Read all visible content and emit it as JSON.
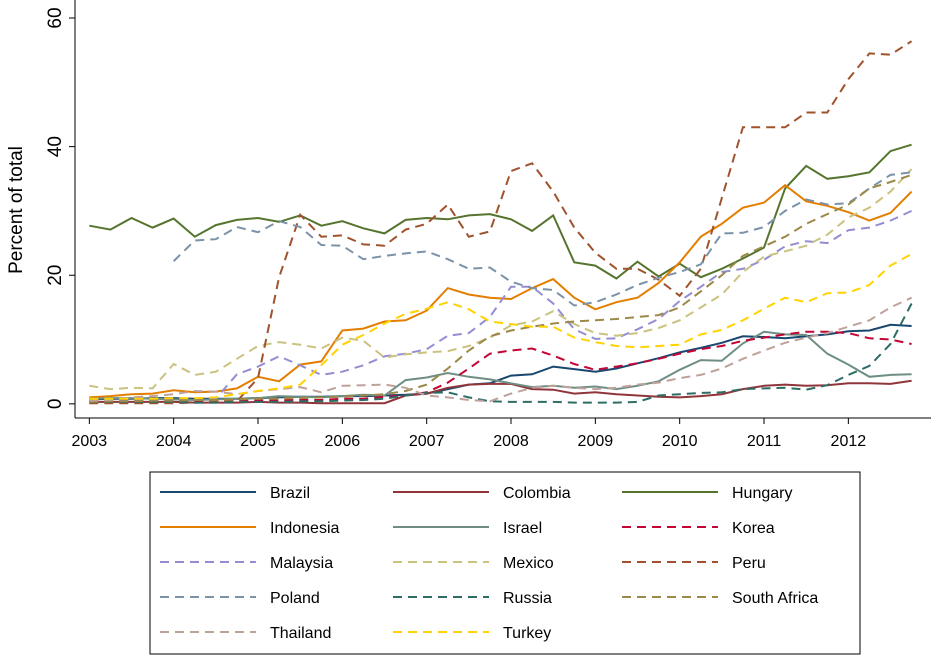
{
  "chart_data": {
    "type": "line",
    "y_label": "Percent of total",
    "x": [
      2003,
      2003.25,
      2003.5,
      2003.75,
      2004,
      2004.25,
      2004.5,
      2004.75,
      2005,
      2005.25,
      2005.5,
      2005.75,
      2006,
      2006.25,
      2006.5,
      2006.75,
      2007,
      2007.25,
      2007.5,
      2007.75,
      2008,
      2008.25,
      2008.5,
      2008.75,
      2009,
      2009.25,
      2009.5,
      2009.75,
      2010,
      2010.25,
      2010.5,
      2010.75,
      2011,
      2011.25,
      2011.5,
      2011.75,
      2012,
      2012.25,
      2012.5,
      2012.75
    ],
    "xlim": [
      2002.83,
      2012.98
    ],
    "xticks": [
      2003,
      2004,
      2005,
      2006,
      2007,
      2008,
      2009,
      2010,
      2011,
      2012
    ],
    "ylim": [
      -2.2,
      62.8
    ],
    "yticks": [
      0,
      20,
      40,
      60
    ],
    "grid": false,
    "series": [
      {
        "name": "Brazil",
        "color": "#1a476f",
        "style": "solid",
        "values": [
          0.7,
          0.8,
          0.8,
          0.9,
          0.9,
          0.8,
          0.8,
          0.8,
          0.9,
          1.0,
          1.1,
          1.1,
          1.2,
          1.2,
          1.3,
          1.4,
          1.6,
          2.3,
          3.0,
          3.2,
          4.4,
          4.6,
          5.8,
          5.4,
          5.0,
          5.5,
          6.3,
          7.1,
          8.0,
          8.7,
          9.5,
          10.5,
          10.4,
          10.2,
          10.5,
          10.8,
          11.3,
          11.4,
          12.3,
          12.1
        ]
      },
      {
        "name": "Colombia",
        "color": "#90353b",
        "style": "solid",
        "values": [
          0.3,
          0.3,
          0.3,
          0.3,
          0.3,
          0.2,
          0.2,
          0.2,
          0.3,
          0.2,
          0.2,
          0.1,
          0.1,
          0.1,
          0.1,
          1.3,
          1.6,
          2.5,
          3.0,
          3.1,
          3.1,
          2.3,
          2.2,
          1.6,
          1.8,
          1.5,
          1.3,
          1.1,
          1.0,
          1.2,
          1.5,
          2.3,
          2.8,
          3.0,
          2.8,
          2.9,
          3.2,
          3.2,
          3.1,
          3.6
        ]
      },
      {
        "name": "Hungary",
        "color": "#55752f",
        "style": "solid",
        "values": [
          27.7,
          27.1,
          28.9,
          27.4,
          28.8,
          26.0,
          27.8,
          28.6,
          28.9,
          28.3,
          29.3,
          27.7,
          28.4,
          27.3,
          26.5,
          28.6,
          28.9,
          28.7,
          29.3,
          29.5,
          28.7,
          26.9,
          29.3,
          22.0,
          21.5,
          19.5,
          22.1,
          19.8,
          21.8,
          19.7,
          21.0,
          22.6,
          24.3,
          33.5,
          37.0,
          35.0,
          35.4,
          36.0,
          39.3,
          40.3
        ]
      },
      {
        "name": "Indonesia",
        "color": "#e37e00",
        "style": "solid",
        "values": [
          1.0,
          1.2,
          1.5,
          1.6,
          2.1,
          1.8,
          1.9,
          2.4,
          4.2,
          3.5,
          6.1,
          6.6,
          11.4,
          11.7,
          12.8,
          13.0,
          14.5,
          18.0,
          17.0,
          16.5,
          16.3,
          18.0,
          19.4,
          16.5,
          14.7,
          15.8,
          16.5,
          18.8,
          22.0,
          26.0,
          28.0,
          30.5,
          31.3,
          34.0,
          31.5,
          30.8,
          29.8,
          28.5,
          29.7,
          33.0
        ]
      },
      {
        "name": "Israel",
        "color": "#6e8e84",
        "style": "solid",
        "values": [
          0.8,
          0.9,
          0.9,
          0.8,
          0.7,
          0.6,
          0.7,
          0.8,
          0.9,
          1.2,
          1.1,
          1.0,
          1.2,
          1.4,
          1.3,
          3.7,
          4.1,
          4.8,
          4.2,
          3.8,
          3.2,
          2.6,
          2.8,
          2.5,
          2.7,
          2.3,
          2.8,
          3.5,
          5.3,
          6.8,
          6.7,
          9.4,
          11.2,
          10.8,
          10.7,
          7.8,
          6.1,
          4.2,
          4.5,
          4.6
        ]
      },
      {
        "name": "Korea",
        "color": "#c10534",
        "style": "dashed",
        "values": [
          0.5,
          0.5,
          0.5,
          0.5,
          0.6,
          0.5,
          0.5,
          0.5,
          0.5,
          0.6,
          0.6,
          0.6,
          0.8,
          0.8,
          1.1,
          1.3,
          1.8,
          3.3,
          5.5,
          7.8,
          8.3,
          8.6,
          7.5,
          6.2,
          5.3,
          5.8,
          6.3,
          7.0,
          7.8,
          8.5,
          9.0,
          9.8,
          10.3,
          10.8,
          11.2,
          11.2,
          11.0,
          10.2,
          10.0,
          9.3
        ]
      },
      {
        "name": "Malaysia",
        "color": "#938dd2",
        "style": "dashed",
        "values": [
          0.3,
          0.4,
          0.5,
          0.5,
          0.6,
          0.7,
          0.8,
          4.6,
          5.8,
          7.4,
          6.0,
          4.5,
          5.0,
          6.0,
          7.4,
          7.8,
          8.5,
          10.6,
          11.0,
          13.5,
          18.2,
          18.2,
          15.6,
          11.6,
          10.1,
          10.2,
          11.6,
          13.2,
          16.0,
          18.2,
          20.5,
          21.0,
          22.4,
          24.5,
          25.3,
          25.0,
          27.0,
          27.4,
          28.5,
          30.0
        ]
      },
      {
        "name": "Mexico",
        "color": "#cac27e",
        "style": "dashed",
        "values": [
          2.8,
          2.3,
          2.5,
          2.4,
          6.2,
          4.5,
          5.0,
          7.0,
          9.0,
          9.6,
          9.2,
          8.6,
          10.3,
          9.8,
          7.2,
          7.7,
          8.0,
          8.2,
          9.0,
          10.3,
          12.2,
          12.8,
          14.4,
          12.4,
          11.0,
          10.6,
          11.0,
          11.8,
          13.0,
          15.0,
          17.0,
          20.5,
          22.9,
          23.7,
          24.6,
          26.3,
          29.0,
          30.5,
          33.0,
          36.5
        ]
      },
      {
        "name": "Peru",
        "color": "#a0522d",
        "style": "dashed",
        "values": [
          0.1,
          0.1,
          0.1,
          0.1,
          0.1,
          0.2,
          0.3,
          0.4,
          4.0,
          19.7,
          29.4,
          26.0,
          26.2,
          24.8,
          24.6,
          27.1,
          28.0,
          31.0,
          26.0,
          26.8,
          36.2,
          37.4,
          33.0,
          27.4,
          23.5,
          21.0,
          21.0,
          19.3,
          16.8,
          21.0,
          32.0,
          43.0,
          43.0,
          43.0,
          45.3,
          45.3,
          50.5,
          54.5,
          54.3,
          56.4
        ]
      },
      {
        "name": "Poland",
        "color": "#7b92a8",
        "style": "dashed",
        "values": [
          null,
          null,
          null,
          null,
          22.2,
          25.4,
          25.6,
          27.5,
          26.7,
          28.4,
          27.5,
          24.7,
          24.6,
          22.5,
          23.0,
          23.4,
          23.7,
          22.5,
          21.0,
          21.2,
          19.0,
          18.0,
          17.7,
          15.3,
          15.8,
          17.0,
          18.5,
          19.6,
          20.5,
          21.7,
          26.5,
          26.6,
          27.5,
          30.0,
          31.8,
          31.0,
          31.2,
          33.5,
          35.6,
          36.0
        ]
      },
      {
        "name": "Russia",
        "color": "#2d6d66",
        "style": "dashed",
        "values": [
          0.3,
          0.3,
          0.3,
          0.3,
          0.3,
          0.2,
          0.2,
          0.3,
          0.3,
          0.3,
          0.4,
          0.4,
          0.5,
          0.6,
          0.8,
          1.3,
          1.7,
          1.8,
          1.0,
          0.4,
          0.3,
          0.3,
          0.3,
          0.2,
          0.2,
          0.2,
          0.3,
          1.3,
          1.5,
          1.7,
          1.8,
          2.3,
          2.4,
          2.5,
          2.2,
          2.9,
          4.5,
          5.9,
          9.3,
          15.6
        ]
      },
      {
        "name": "South Africa",
        "color": "#9c8847",
        "style": "dashed",
        "values": [
          0.3,
          0.4,
          0.4,
          0.5,
          0.5,
          0.6,
          0.6,
          0.7,
          0.8,
          0.8,
          0.9,
          1.0,
          1.1,
          1.3,
          1.5,
          2.0,
          3.0,
          5.5,
          8.3,
          10.5,
          11.4,
          12.0,
          12.5,
          12.8,
          13.0,
          13.2,
          13.5,
          13.8,
          15.0,
          17.5,
          20.0,
          23.0,
          24.5,
          26.0,
          28.0,
          29.5,
          31.0,
          33.5,
          34.5,
          35.6
        ]
      },
      {
        "name": "Thailand",
        "color": "#bfa19c",
        "style": "dashed",
        "values": [
          0.5,
          0.6,
          1.0,
          1.2,
          1.5,
          2.0,
          1.9,
          1.5,
          2.0,
          2.3,
          2.6,
          1.8,
          2.8,
          2.9,
          3.0,
          2.5,
          1.3,
          1.0,
          0.6,
          0.4,
          1.6,
          2.5,
          2.8,
          2.5,
          2.3,
          2.5,
          3.0,
          3.3,
          4.0,
          4.5,
          5.5,
          7.0,
          8.3,
          9.5,
          10.3,
          11.0,
          12.0,
          13.0,
          15.0,
          16.5
        ]
      },
      {
        "name": "Turkey",
        "color": "#ffd200",
        "style": "dashed",
        "values": [
          0.8,
          0.8,
          0.8,
          0.8,
          0.9,
          0.9,
          1.0,
          1.5,
          2.0,
          2.4,
          3.0,
          6.0,
          9.2,
          10.7,
          12.5,
          14.0,
          14.8,
          15.8,
          14.7,
          12.8,
          12.4,
          12.0,
          12.0,
          10.3,
          9.6,
          9.0,
          8.8,
          9.0,
          9.2,
          10.8,
          11.5,
          13.0,
          14.8,
          16.5,
          15.8,
          17.2,
          17.3,
          18.5,
          21.5,
          23.3
        ]
      }
    ]
  }
}
